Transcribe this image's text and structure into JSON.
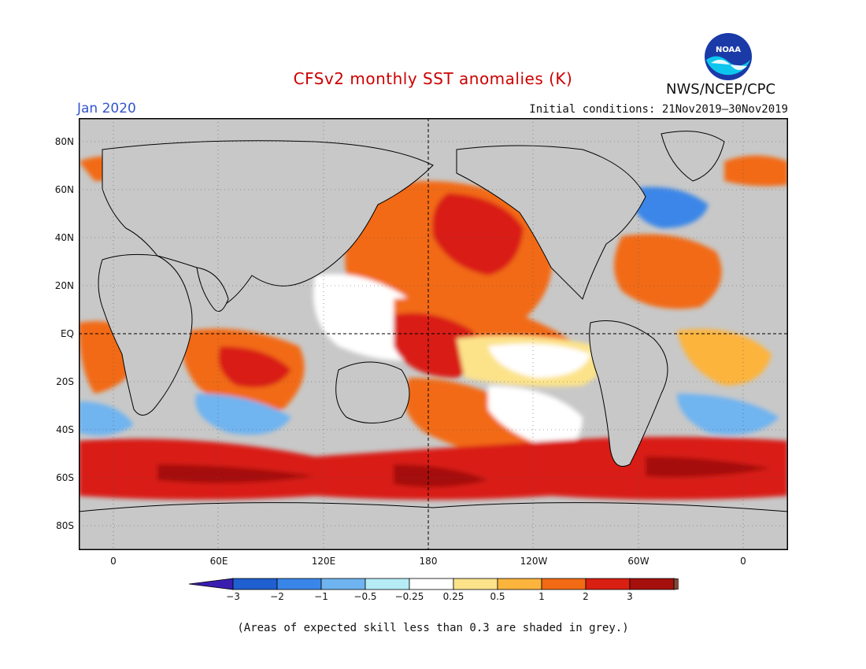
{
  "header": {
    "title": "CFSv2 monthly SST anomalies (K)",
    "period": "Jan 2020",
    "initial_conditions": "Initial conditions: 21Nov2019–30Nov2019",
    "agency": "NWS/NCEP/CPC",
    "logo_text": "NOAA"
  },
  "map": {
    "lat_labels": [
      "80N",
      "60N",
      "40N",
      "20N",
      "EQ",
      "20S",
      "40S",
      "60S",
      "80S"
    ],
    "lon_labels": [
      "0",
      "60E",
      "120E",
      "180",
      "120W",
      "60W",
      "0"
    ],
    "land_color": "#c8c8c8",
    "reference_lines": [
      "equator",
      "180 meridian"
    ]
  },
  "colorbar": {
    "labels": [
      "−3",
      "−2",
      "−1",
      "−0.5",
      "−0.25",
      "0.25",
      "0.5",
      "1",
      "2",
      "3"
    ],
    "colors": [
      "#3a1db0",
      "#1f5fd0",
      "#3a86e8",
      "#6fb4f0",
      "#b6ecf6",
      "#ffffff",
      "#fce38a",
      "#fcb43c",
      "#f26a14",
      "#d91f12",
      "#a5100c",
      "#7a4a3a"
    ]
  },
  "footer": {
    "note": "(Areas of expected skill less than 0.3 are shaded in grey.)"
  }
}
